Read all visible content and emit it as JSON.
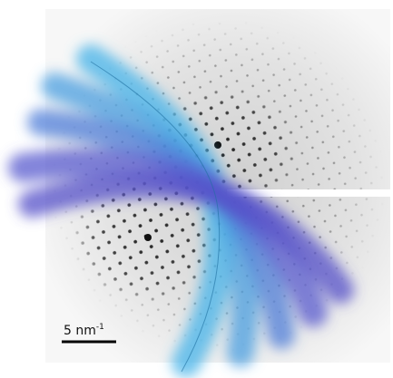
{
  "scale_bar": {
    "label": "5 nm",
    "exponent": "-1"
  }
}
